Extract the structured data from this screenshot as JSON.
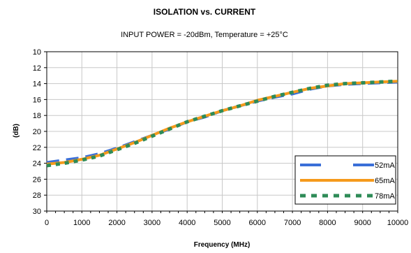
{
  "chart_data": {
    "type": "line",
    "title": "ISOLATION vs. CURRENT",
    "subtitle": "INPUT POWER = -20dBm, Temperature = +25°C",
    "xlabel": "Frequency (MHz)",
    "ylabel": "(dB)",
    "xlim": [
      0,
      10000
    ],
    "ylim": [
      30,
      10
    ],
    "y_reversed": true,
    "x_ticks": [
      "0",
      "1000",
      "2000",
      "3000",
      "4000",
      "5000",
      "6000",
      "7000",
      "8000",
      "9000",
      "10000"
    ],
    "y_ticks": [
      "10",
      "12",
      "14",
      "16",
      "18",
      "20",
      "22",
      "24",
      "26",
      "28",
      "30"
    ],
    "grid": true,
    "legend_position": "bottom-right",
    "series": [
      {
        "name": "52mA",
        "color": "#3a6fd8",
        "style": "long-dash",
        "x": [
          0,
          500,
          1000,
          1500,
          2000,
          2500,
          3000,
          3500,
          4000,
          4500,
          5000,
          5500,
          6000,
          6500,
          7000,
          7500,
          8000,
          8500,
          9000,
          9500,
          10000
        ],
        "y": [
          23.9,
          23.6,
          23.3,
          22.8,
          22.1,
          21.3,
          20.5,
          19.7,
          18.8,
          18.2,
          17.4,
          16.8,
          16.2,
          15.7,
          15.3,
          14.7,
          14.3,
          14.1,
          14.0,
          13.9,
          13.8
        ]
      },
      {
        "name": "65mA",
        "color": "#f59a1c",
        "style": "solid",
        "x": [
          0,
          500,
          1000,
          1500,
          2000,
          2500,
          3000,
          3500,
          4000,
          4500,
          5000,
          5500,
          6000,
          6500,
          7000,
          7500,
          8000,
          8500,
          9000,
          9500,
          10000
        ],
        "y": [
          24.1,
          23.9,
          23.5,
          23.0,
          22.2,
          21.4,
          20.5,
          19.6,
          18.8,
          18.1,
          17.4,
          16.8,
          16.1,
          15.6,
          15.1,
          14.6,
          14.3,
          14.0,
          13.9,
          13.8,
          13.7
        ]
      },
      {
        "name": "78mA",
        "color": "#2e8b57",
        "style": "dotted",
        "x": [
          0,
          500,
          1000,
          1500,
          2000,
          2500,
          3000,
          3500,
          4000,
          4500,
          5000,
          5500,
          6000,
          6500,
          7000,
          7500,
          8000,
          8500,
          9000,
          9500,
          10000
        ],
        "y": [
          24.3,
          24.0,
          23.6,
          23.1,
          22.3,
          21.5,
          20.6,
          19.7,
          18.8,
          18.1,
          17.4,
          16.8,
          16.2,
          15.6,
          15.1,
          14.6,
          14.2,
          14.0,
          13.9,
          13.8,
          13.7
        ]
      }
    ]
  }
}
